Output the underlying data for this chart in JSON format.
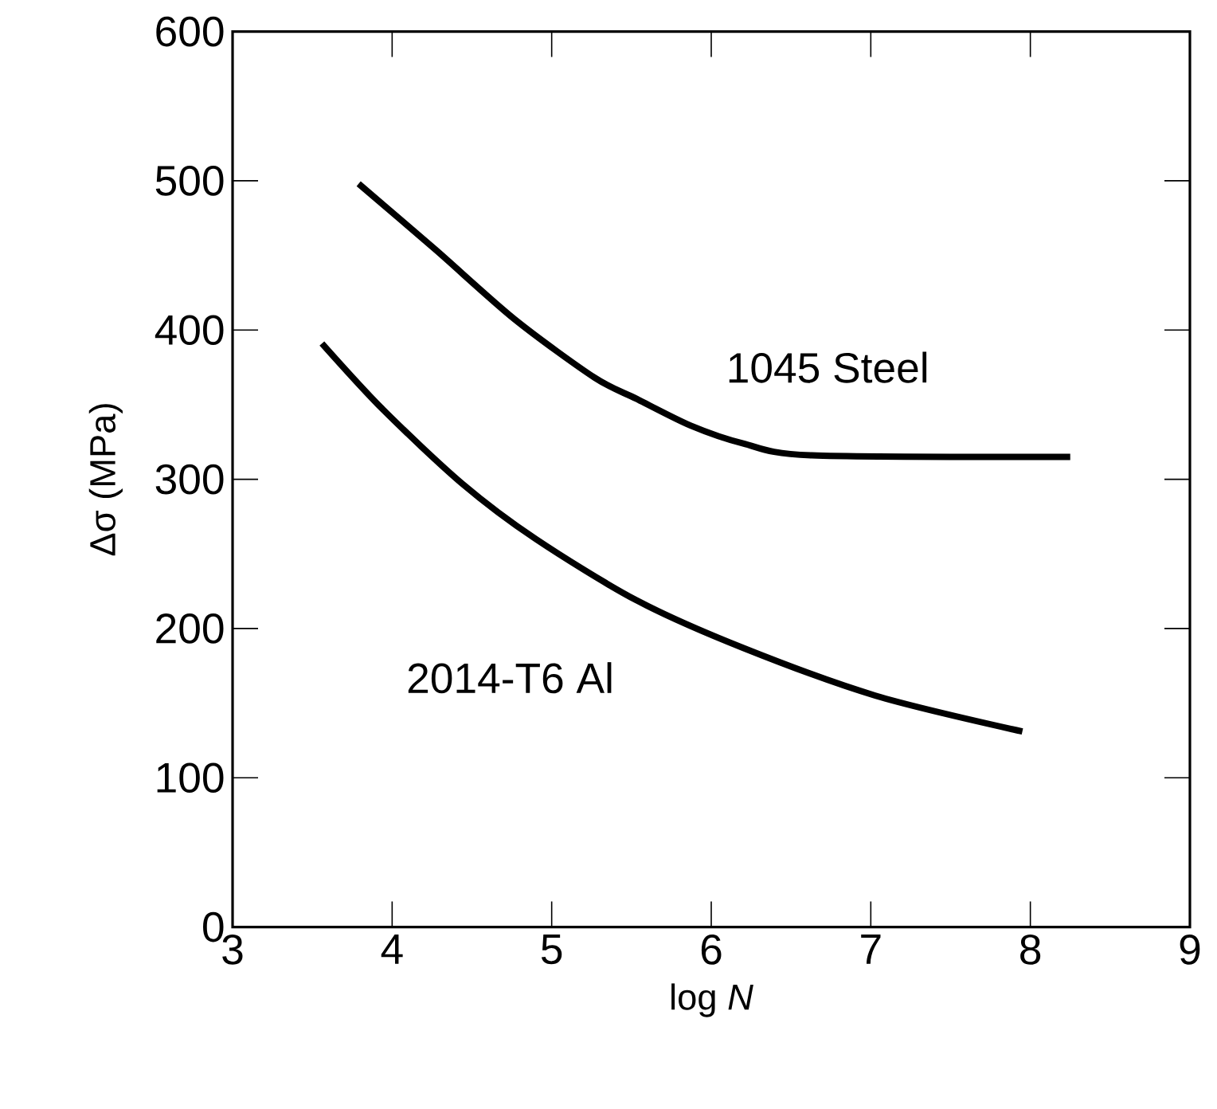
{
  "chart_data": {
    "type": "line",
    "xlabel": "log *N*",
    "ylabel": "Δσ   (MPa)",
    "xlim": [
      3,
      9
    ],
    "ylim": [
      0,
      600
    ],
    "xticks": [
      3,
      4,
      5,
      6,
      7,
      8,
      9
    ],
    "yticks": [
      0,
      100,
      200,
      300,
      400,
      500,
      600
    ],
    "grid": false,
    "legend": false,
    "marker": "none",
    "line_style": "solid",
    "series": [
      {
        "name": "1045 Steel",
        "color": "#000000",
        "x": [
          3.79,
          4.27,
          4.77,
          5.27,
          5.53,
          5.87,
          6.2,
          6.63,
          8.25
        ],
        "values": [
          498,
          454,
          407,
          368,
          354,
          336,
          324,
          316,
          315
        ]
      },
      {
        "name": "2014-T6 Al",
        "color": "#000000",
        "x": [
          3.56,
          3.94,
          4.44,
          4.9,
          5.53,
          6.2,
          7.03,
          7.95
        ],
        "values": [
          391,
          347,
          297,
          260,
          219,
          187,
          155,
          131
        ]
      }
    ]
  }
}
